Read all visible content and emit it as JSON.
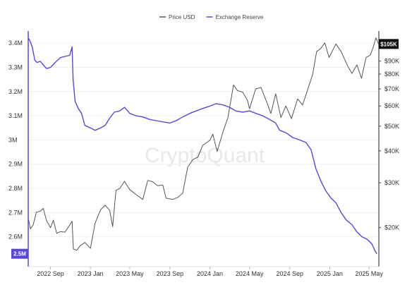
{
  "chart_data": {
    "type": "line",
    "watermark": "CryptoQuant",
    "legend": [
      {
        "name": "Price USD",
        "color": "#555555"
      },
      {
        "name": "Exchange Reserve",
        "color": "#5b47d6"
      }
    ],
    "x_axis": {
      "range": [
        "2022-06-25",
        "2025-05-31"
      ],
      "ticks": [
        {
          "date": "2022-09-01",
          "label": "2022 Sep"
        },
        {
          "date": "2023-01-01",
          "label": "2023 Jan"
        },
        {
          "date": "2023-05-01",
          "label": "2023 May"
        },
        {
          "date": "2023-09-01",
          "label": "2023 Sep"
        },
        {
          "date": "2024-01-01",
          "label": "2024 Jan"
        },
        {
          "date": "2024-05-01",
          "label": "2024 May"
        },
        {
          "date": "2024-09-01",
          "label": "2024 Sep"
        },
        {
          "date": "2025-01-01",
          "label": "2025 Jan"
        },
        {
          "date": "2025-05-01",
          "label": "2025 May"
        }
      ]
    },
    "left_axis": {
      "range": [
        2500000,
        3450000
      ],
      "ticks": [
        {
          "value": 3400000,
          "label": "3.4M"
        },
        {
          "value": 3300000,
          "label": "3.3M"
        },
        {
          "value": 3200000,
          "label": "3.2M"
        },
        {
          "value": 3100000,
          "label": "3.1M"
        },
        {
          "value": 3000000,
          "label": "3M"
        },
        {
          "value": 2900000,
          "label": "2.9M"
        },
        {
          "value": 2800000,
          "label": "2.8M"
        },
        {
          "value": 2700000,
          "label": "2.7M"
        },
        {
          "value": 2600000,
          "label": "2.6M"
        }
      ],
      "current_badge": {
        "label": "2.5M",
        "color": "#5b47d6"
      }
    },
    "right_axis": {
      "scale": "log",
      "range": [
        14800,
        118000
      ],
      "ticks": [
        {
          "value": 90000,
          "label": "$90K"
        },
        {
          "value": 80000,
          "label": "$80K"
        },
        {
          "value": 70000,
          "label": "$70K"
        },
        {
          "value": 60000,
          "label": "$60K"
        },
        {
          "value": 50000,
          "label": "$50K"
        },
        {
          "value": 40000,
          "label": "$40K"
        },
        {
          "value": 30000,
          "label": "$30K"
        },
        {
          "value": 20000,
          "label": "$20K"
        }
      ],
      "current_badge": {
        "label": "$105K",
        "color": "#111111"
      }
    },
    "series": [
      {
        "name": "Exchange Reserve",
        "axis": "left",
        "color": "#5b47d6",
        "points": [
          [
            "2022-06-26",
            3420000
          ],
          [
            "2022-07-02",
            3405000
          ],
          [
            "2022-07-08",
            3380000
          ],
          [
            "2022-07-15",
            3330000
          ],
          [
            "2022-07-22",
            3320000
          ],
          [
            "2022-08-01",
            3325000
          ],
          [
            "2022-08-10",
            3310000
          ],
          [
            "2022-08-20",
            3295000
          ],
          [
            "2022-09-01",
            3300000
          ],
          [
            "2022-09-15",
            3320000
          ],
          [
            "2022-10-01",
            3340000
          ],
          [
            "2022-10-15",
            3345000
          ],
          [
            "2022-10-30",
            3350000
          ],
          [
            "2022-11-06",
            3385000
          ],
          [
            "2022-11-09",
            3250000
          ],
          [
            "2022-11-15",
            3160000
          ],
          [
            "2022-11-25",
            3130000
          ],
          [
            "2022-12-05",
            3110000
          ],
          [
            "2022-12-15",
            3060000
          ],
          [
            "2023-01-01",
            3050000
          ],
          [
            "2023-01-15",
            3040000
          ],
          [
            "2023-02-01",
            3050000
          ],
          [
            "2023-02-15",
            3060000
          ],
          [
            "2023-03-01",
            3090000
          ],
          [
            "2023-03-15",
            3115000
          ],
          [
            "2023-04-01",
            3120000
          ],
          [
            "2023-04-15",
            3135000
          ],
          [
            "2023-05-01",
            3110000
          ],
          [
            "2023-05-20",
            3100000
          ],
          [
            "2023-06-10",
            3095000
          ],
          [
            "2023-07-01",
            3085000
          ],
          [
            "2023-07-20",
            3080000
          ],
          [
            "2023-08-10",
            3075000
          ],
          [
            "2023-09-01",
            3070000
          ],
          [
            "2023-09-20",
            3080000
          ],
          [
            "2023-10-10",
            3095000
          ],
          [
            "2023-11-01",
            3110000
          ],
          [
            "2023-11-20",
            3120000
          ],
          [
            "2023-12-10",
            3130000
          ],
          [
            "2024-01-01",
            3140000
          ],
          [
            "2024-01-20",
            3150000
          ],
          [
            "2024-02-10",
            3145000
          ],
          [
            "2024-03-01",
            3135000
          ],
          [
            "2024-03-20",
            3120000
          ],
          [
            "2024-04-10",
            3115000
          ],
          [
            "2024-05-01",
            3120000
          ],
          [
            "2024-05-20",
            3110000
          ],
          [
            "2024-06-10",
            3100000
          ],
          [
            "2024-07-01",
            3085000
          ],
          [
            "2024-07-20",
            3070000
          ],
          [
            "2024-08-01",
            3040000
          ],
          [
            "2024-08-20",
            3030000
          ],
          [
            "2024-09-10",
            3010000
          ],
          [
            "2024-10-01",
            3000000
          ],
          [
            "2024-10-20",
            2990000
          ],
          [
            "2024-11-05",
            2960000
          ],
          [
            "2024-11-20",
            2880000
          ],
          [
            "2024-12-05",
            2830000
          ],
          [
            "2024-12-20",
            2790000
          ],
          [
            "2025-01-05",
            2760000
          ],
          [
            "2025-01-20",
            2740000
          ],
          [
            "2025-02-05",
            2700000
          ],
          [
            "2025-02-20",
            2670000
          ],
          [
            "2025-03-10",
            2650000
          ],
          [
            "2025-03-25",
            2620000
          ],
          [
            "2025-04-10",
            2600000
          ],
          [
            "2025-04-25",
            2590000
          ],
          [
            "2025-05-10",
            2570000
          ],
          [
            "2025-05-20",
            2540000
          ],
          [
            "2025-05-25",
            2530000
          ]
        ]
      },
      {
        "name": "Price USD",
        "axis": "right",
        "color": "#555555",
        "points": [
          [
            "2022-06-26",
            21500
          ],
          [
            "2022-07-02",
            19800
          ],
          [
            "2022-07-10",
            20500
          ],
          [
            "2022-07-20",
            23000
          ],
          [
            "2022-08-01",
            23200
          ],
          [
            "2022-08-10",
            23800
          ],
          [
            "2022-08-20",
            21300
          ],
          [
            "2022-09-01",
            20000
          ],
          [
            "2022-09-10",
            21400
          ],
          [
            "2022-09-20",
            19000
          ],
          [
            "2022-10-01",
            19300
          ],
          [
            "2022-10-15",
            19200
          ],
          [
            "2022-10-30",
            20500
          ],
          [
            "2022-11-06",
            21200
          ],
          [
            "2022-11-10",
            16500
          ],
          [
            "2022-11-20",
            16300
          ],
          [
            "2022-12-01",
            17000
          ],
          [
            "2022-12-15",
            17500
          ],
          [
            "2023-01-01",
            16600
          ],
          [
            "2023-01-15",
            20800
          ],
          [
            "2023-02-01",
            23500
          ],
          [
            "2023-02-15",
            24500
          ],
          [
            "2023-03-01",
            23400
          ],
          [
            "2023-03-10",
            20200
          ],
          [
            "2023-03-20",
            28000
          ],
          [
            "2023-04-01",
            28500
          ],
          [
            "2023-04-15",
            30400
          ],
          [
            "2023-05-01",
            28200
          ],
          [
            "2023-05-20",
            27000
          ],
          [
            "2023-06-10",
            25800
          ],
          [
            "2023-06-25",
            30600
          ],
          [
            "2023-07-10",
            30300
          ],
          [
            "2023-07-25",
            29200
          ],
          [
            "2023-08-10",
            29400
          ],
          [
            "2023-08-20",
            26100
          ],
          [
            "2023-09-10",
            25800
          ],
          [
            "2023-09-25",
            26300
          ],
          [
            "2023-10-10",
            27300
          ],
          [
            "2023-10-25",
            34500
          ],
          [
            "2023-11-10",
            37000
          ],
          [
            "2023-11-25",
            37800
          ],
          [
            "2023-12-10",
            42000
          ],
          [
            "2024-01-01",
            44000
          ],
          [
            "2024-01-10",
            46500
          ],
          [
            "2024-01-23",
            39800
          ],
          [
            "2024-02-10",
            47500
          ],
          [
            "2024-02-25",
            54000
          ],
          [
            "2024-03-13",
            72500
          ],
          [
            "2024-03-25",
            69000
          ],
          [
            "2024-04-10",
            68000
          ],
          [
            "2024-04-25",
            63000
          ],
          [
            "2024-05-01",
            58500
          ],
          [
            "2024-05-20",
            70000
          ],
          [
            "2024-06-05",
            71000
          ],
          [
            "2024-06-25",
            61000
          ],
          [
            "2024-07-05",
            56000
          ],
          [
            "2024-07-20",
            67000
          ],
          [
            "2024-08-05",
            54000
          ],
          [
            "2024-08-20",
            60000
          ],
          [
            "2024-09-06",
            53500
          ],
          [
            "2024-09-25",
            64000
          ],
          [
            "2024-10-10",
            60500
          ],
          [
            "2024-10-28",
            71000
          ],
          [
            "2024-11-10",
            80000
          ],
          [
            "2024-11-22",
            98000
          ],
          [
            "2024-12-05",
            101000
          ],
          [
            "2024-12-17",
            106000
          ],
          [
            "2024-12-30",
            93000
          ],
          [
            "2025-01-20",
            105000
          ],
          [
            "2025-02-05",
            98000
          ],
          [
            "2025-02-25",
            86000
          ],
          [
            "2025-03-10",
            80500
          ],
          [
            "2025-03-25",
            87000
          ],
          [
            "2025-04-08",
            77000
          ],
          [
            "2025-04-22",
            93000
          ],
          [
            "2025-05-05",
            95000
          ],
          [
            "2025-05-15",
            103000
          ],
          [
            "2025-05-22",
            111000
          ],
          [
            "2025-05-30",
            105000
          ]
        ]
      }
    ]
  }
}
